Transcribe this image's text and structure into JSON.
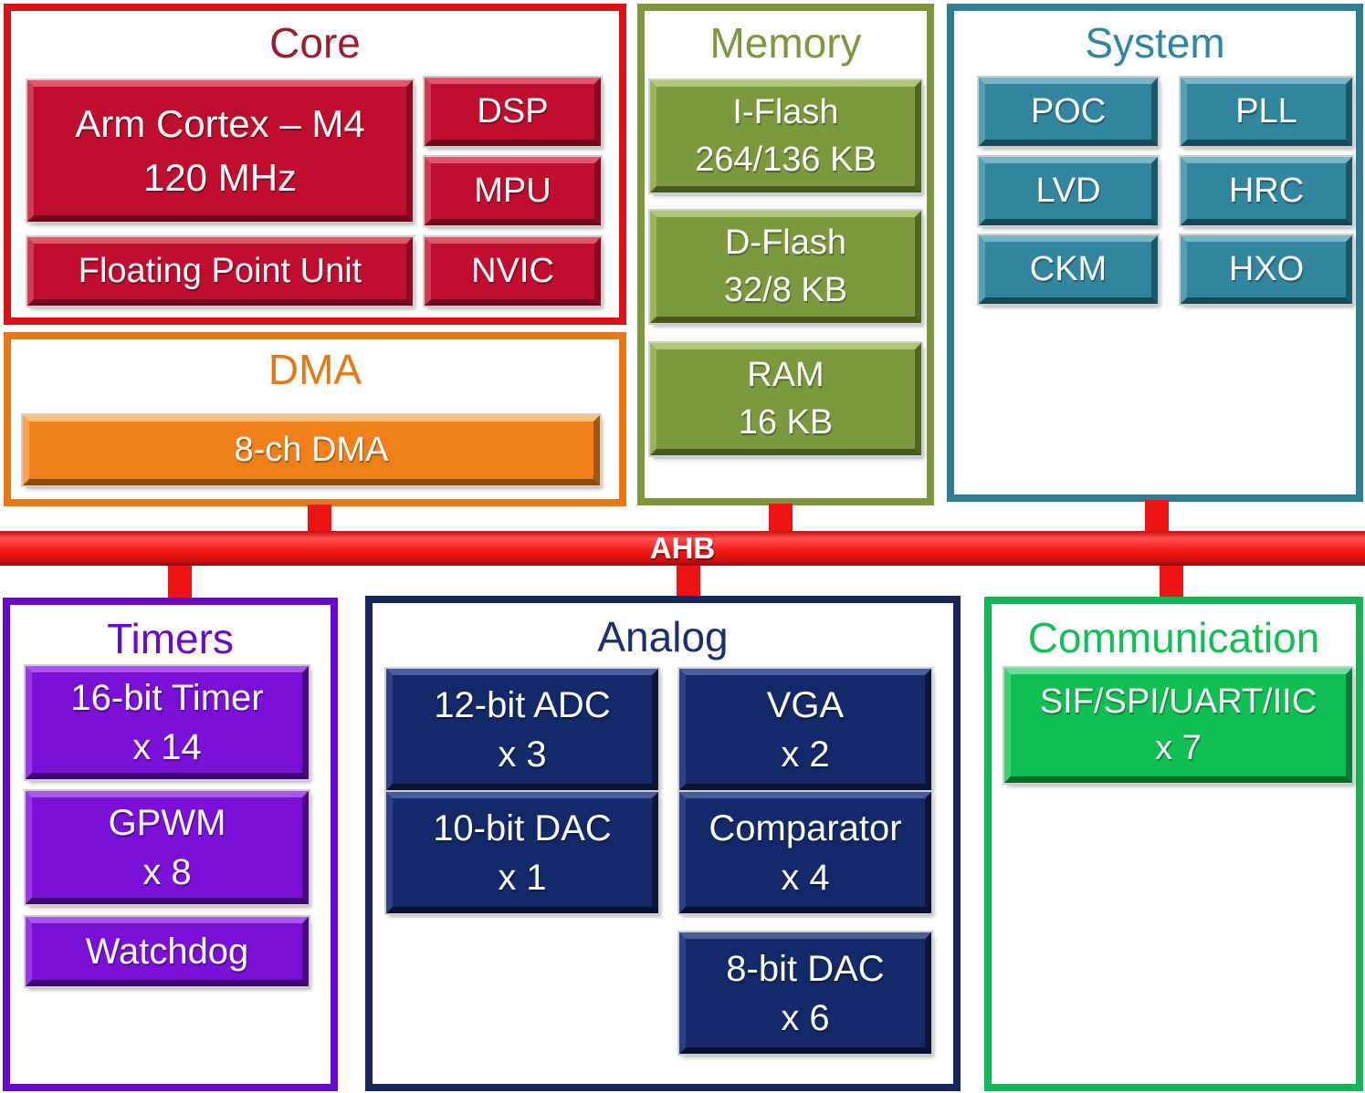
{
  "bus": {
    "label": "AHB",
    "color": "#ee1414"
  },
  "sections": {
    "core": {
      "title": "Core",
      "accent": "#da1117",
      "title_color": "#9e1b32",
      "block_fill": "#c00d2e",
      "blocks": {
        "cpu": {
          "lines": [
            "Arm Cortex – M4",
            "120 MHz"
          ]
        },
        "dsp": {
          "lines": [
            "DSP"
          ]
        },
        "mpu": {
          "lines": [
            "MPU"
          ]
        },
        "fpu": {
          "lines": [
            "Floating Point Unit"
          ]
        },
        "nvic": {
          "lines": [
            "NVIC"
          ]
        }
      }
    },
    "dma": {
      "title": "DMA",
      "accent": "#e87817",
      "title_color": "#e87817",
      "block_fill": "#f08019",
      "blocks": {
        "dma8": {
          "lines": [
            "8-ch DMA"
          ]
        }
      }
    },
    "memory": {
      "title": "Memory",
      "accent": "#7e963e",
      "title_color": "#7e963e",
      "block_fill": "#7c9a3d",
      "blocks": {
        "iflash": {
          "lines": [
            "I-Flash",
            "264/136 KB"
          ]
        },
        "dflash": {
          "lines": [
            "D-Flash",
            "32/8 KB"
          ]
        },
        "ram": {
          "lines": [
            "RAM",
            "16 KB"
          ]
        }
      }
    },
    "system": {
      "title": "System",
      "accent": "#2e7d96",
      "title_color": "#2e86a1",
      "block_fill": "#31859e",
      "blocks": {
        "poc": {
          "lines": [
            "POC"
          ]
        },
        "pll": {
          "lines": [
            "PLL"
          ]
        },
        "lvd": {
          "lines": [
            "LVD"
          ]
        },
        "hrc": {
          "lines": [
            "HRC"
          ]
        },
        "ckm": {
          "lines": [
            "CKM"
          ]
        },
        "hxo": {
          "lines": [
            "HXO"
          ]
        }
      }
    },
    "timers": {
      "title": "Timers",
      "accent": "#6708ca",
      "title_color": "#6a0acd",
      "block_fill": "#7a0fd8",
      "blocks": {
        "timer16": {
          "lines": [
            "16-bit Timer",
            "x 14"
          ]
        },
        "gpwm": {
          "lines": [
            "GPWM",
            "x 8"
          ]
        },
        "watchdog": {
          "lines": [
            "Watchdog"
          ]
        }
      }
    },
    "analog": {
      "title": "Analog",
      "accent": "#17265b",
      "title_color": "#1b2f6d",
      "block_fill": "#13296a",
      "blocks": {
        "adc12": {
          "lines": [
            "12-bit ADC",
            "x 3"
          ]
        },
        "vga": {
          "lines": [
            "VGA",
            "x 2"
          ]
        },
        "dac10": {
          "lines": [
            "10-bit DAC",
            "x 1"
          ]
        },
        "comparator": {
          "lines": [
            "Comparator",
            "x 4"
          ]
        },
        "dac8": {
          "lines": [
            "8-bit DAC",
            "x 6"
          ]
        }
      }
    },
    "communication": {
      "title": "Communication",
      "accent": "#15b657",
      "title_color": "#10c055",
      "block_fill": "#10bf53",
      "blocks": {
        "serial": {
          "lines": [
            "SIF/SPI/UART/IIC",
            "x 7"
          ]
        }
      }
    }
  }
}
